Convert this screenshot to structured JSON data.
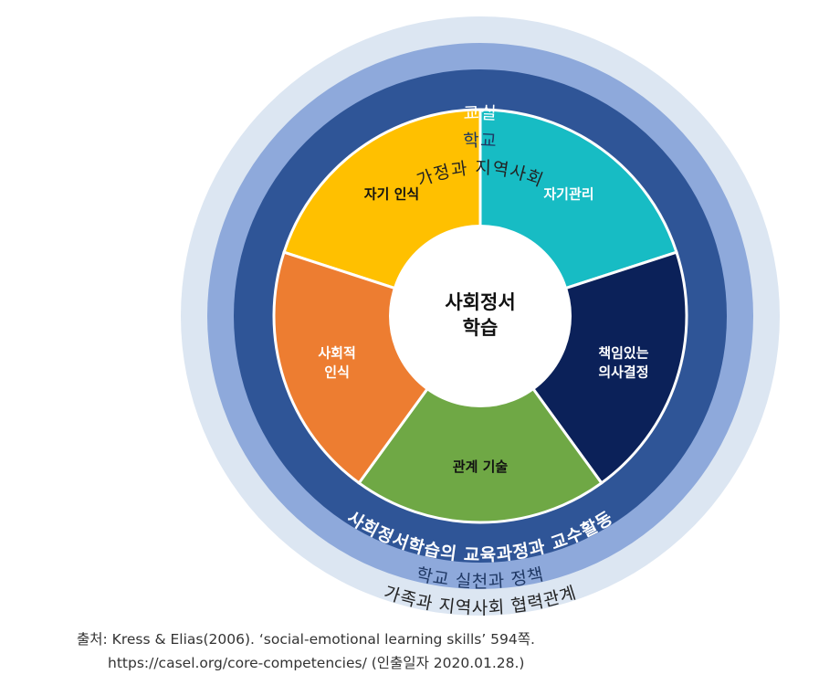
{
  "rings": {
    "outer_top": "가정과 지역사회",
    "outer_bottom": "가족과 지역사회 협력관계",
    "middle_top": "학교",
    "middle_bottom": "학교 실천과 정책",
    "inner_top": "교실",
    "inner_bottom": "사회정서학습의 교육과정과 교수활동"
  },
  "segments": [
    {
      "lines": [
        "자기 인식"
      ],
      "color": "#FFC000",
      "text_color": "#111111"
    },
    {
      "lines": [
        "자기관리"
      ],
      "color": "#17BCC4",
      "text_color": "#ffffff"
    },
    {
      "lines": [
        "책임있는",
        "의사결정"
      ],
      "color": "#0B2159",
      "text_color": "#ffffff"
    },
    {
      "lines": [
        "관계 기술"
      ],
      "color": "#6FA845",
      "text_color": "#111111"
    },
    {
      "lines": [
        "사회적",
        "인식"
      ],
      "color": "#ED7D31",
      "text_color": "#ffffff"
    }
  ],
  "center": {
    "line1": "사회정서",
    "line2": "학습"
  },
  "colors": {
    "outer_ring": "#DCE6F2",
    "middle_ring": "#8EA9DB",
    "inner_ring": "#2F5597",
    "outer_text": "#222222",
    "middle_text": "#1F3864",
    "inner_text": "#ffffff"
  },
  "source": {
    "line1": "출처: Kress & Elias(2006). ‘social-emotional learning skills’ 594쪽.",
    "line2": "https://casel.org/core-competencies/ (인출일자 2020.01.28.)"
  }
}
